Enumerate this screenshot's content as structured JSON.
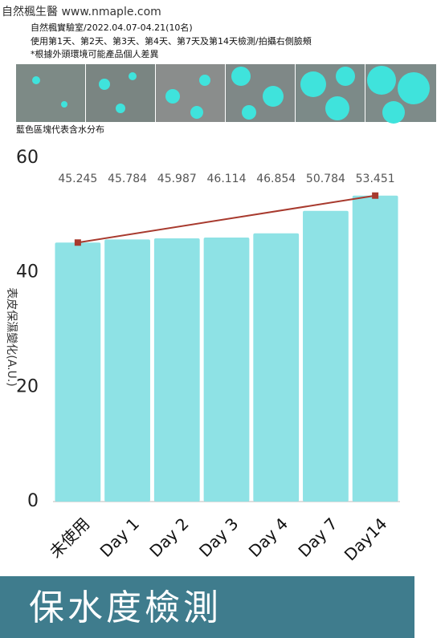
{
  "header": {
    "brand": "自然楓生醫 www.nmaple.com",
    "lines": [
      "自然楓實驗室/2022.04.07-04.21(10名)",
      "使用第1天、第2天、第3天、第4天、第7天及第14天檢測/拍攝右側臉頰",
      "*根據外頭環境可能產品個人差異"
    ]
  },
  "caption": "藍色區塊代表含水分布",
  "chart_data": {
    "type": "bar",
    "ylabel": "表皮保濕變化(A.U.)",
    "categories": [
      "未使用",
      "Day 1",
      "Day 2",
      "Day 3",
      "Day 4",
      "Day 7",
      "Day14"
    ],
    "values": [
      45.245,
      45.784,
      45.987,
      46.114,
      46.854,
      50.784,
      53.451
    ],
    "color": "#8ee2e5",
    "trend_color": "#a83a2e",
    "ylim": [
      0,
      60
    ],
    "yticks": [
      0,
      20,
      40,
      60
    ]
  },
  "banner": {
    "title": "保水度檢測"
  }
}
